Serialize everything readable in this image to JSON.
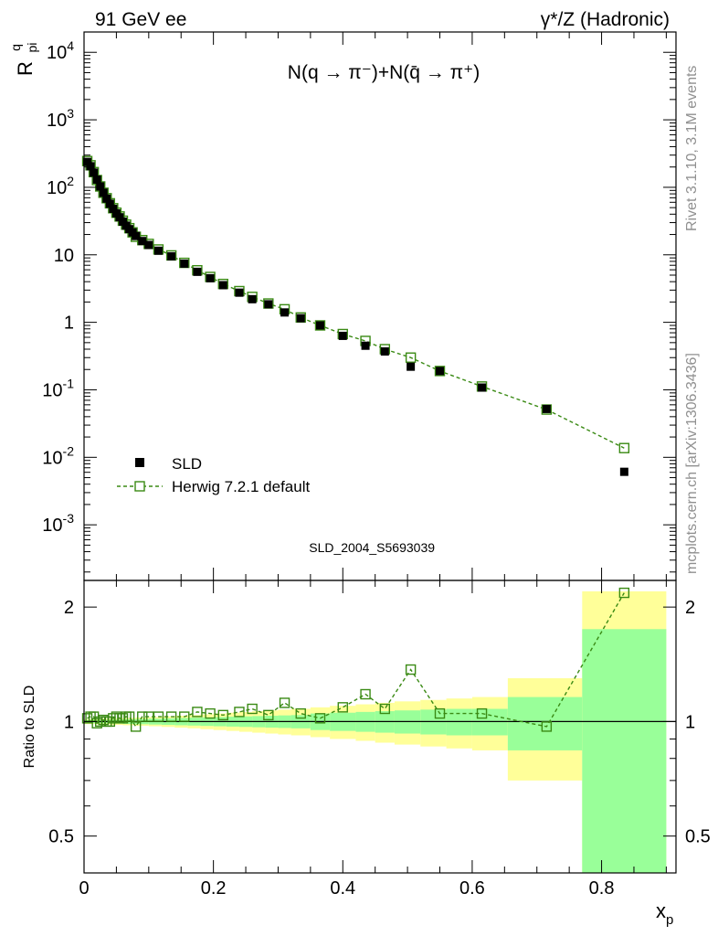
{
  "header": {
    "left": "91 GeV ee",
    "right": "γ*/Z (Hadronic)"
  },
  "side_labels": {
    "rivet": "Rivet 3.1.10,  3.1M events",
    "mcplots": "mcplots.cern.ch [arXiv:1306.3436]"
  },
  "chart_data": [
    {
      "type": "scatter",
      "panel": "main",
      "title": "N(q → π⁻)+N(q̄ → π⁺)",
      "ylabel": "R^q_pi",
      "yscale": "log",
      "ylim": [
        0.00015,
        20000
      ],
      "xlim": [
        0,
        0.915
      ],
      "y_tick_labels": [
        "10^4",
        "10^3",
        "10^2",
        "10",
        "1",
        "10^-1",
        "10^-2",
        "10^-3"
      ],
      "watermark": "SLD_2004_S5693039",
      "legend_position": "middle-left",
      "series": [
        {
          "name": "SLD",
          "marker": "filled-square",
          "color": "#000000",
          "x": [
            0.005,
            0.01,
            0.015,
            0.02,
            0.025,
            0.03,
            0.035,
            0.04,
            0.045,
            0.05,
            0.055,
            0.06,
            0.065,
            0.07,
            0.075,
            0.08,
            0.09,
            0.1,
            0.115,
            0.135,
            0.155,
            0.175,
            0.195,
            0.215,
            0.24,
            0.26,
            0.285,
            0.31,
            0.335,
            0.365,
            0.4,
            0.435,
            0.465,
            0.505,
            0.55,
            0.615,
            0.715,
            0.835
          ],
          "values": [
            238,
            205,
            165,
            130,
            103,
            83,
            68,
            57,
            48,
            41,
            36,
            31,
            27,
            24,
            21.5,
            19,
            16,
            14,
            11.5,
            9.5,
            7.4,
            5.6,
            4.5,
            3.55,
            2.75,
            2.2,
            1.85,
            1.4,
            1.15,
            0.9,
            0.63,
            0.45,
            0.37,
            0.22,
            0.19,
            0.108,
            0.052,
            0.0061
          ]
        },
        {
          "name": "Herwig 7.2.1 default",
          "marker": "open-square-dashed",
          "color": "#3a8a14",
          "x": [
            0.005,
            0.01,
            0.015,
            0.02,
            0.025,
            0.03,
            0.035,
            0.04,
            0.045,
            0.05,
            0.055,
            0.06,
            0.065,
            0.07,
            0.075,
            0.08,
            0.09,
            0.1,
            0.115,
            0.135,
            0.155,
            0.175,
            0.195,
            0.215,
            0.24,
            0.26,
            0.285,
            0.31,
            0.335,
            0.365,
            0.4,
            0.435,
            0.465,
            0.505,
            0.55,
            0.615,
            0.715,
            0.835
          ],
          "values": [
            245,
            212,
            168,
            128,
            103,
            83,
            69,
            58,
            49,
            42,
            37,
            32,
            28,
            24.8,
            21.5,
            18.5,
            16.5,
            14.5,
            12,
            9.8,
            7.6,
            5.9,
            4.7,
            3.7,
            2.9,
            2.38,
            1.9,
            1.56,
            1.18,
            0.9,
            0.67,
            0.53,
            0.4,
            0.3,
            0.19,
            0.112,
            0.051,
            0.0137
          ]
        }
      ]
    },
    {
      "type": "line",
      "panel": "ratio",
      "ylabel": "Ratio to SLD",
      "xlabel": "x_p",
      "yscale": "log",
      "ylim": [
        0.4,
        2.35
      ],
      "xlim": [
        0,
        0.915
      ],
      "y_tick_labels": [
        "2",
        "1",
        "0.5"
      ],
      "x_tick_labels": [
        "0",
        "0.2",
        "0.4",
        "0.6",
        "0.8"
      ],
      "x_ticks": [
        0,
        0.2,
        0.4,
        0.6,
        0.8
      ],
      "bands": {
        "edges": [
          0,
          0.02,
          0.04,
          0.06,
          0.08,
          0.1,
          0.12,
          0.14,
          0.16,
          0.18,
          0.2,
          0.22,
          0.24,
          0.26,
          0.28,
          0.3,
          0.32,
          0.35,
          0.38,
          0.42,
          0.45,
          0.48,
          0.52,
          0.56,
          0.6,
          0.655,
          0.77,
          0.9
        ],
        "green_half_width": [
          0.01,
          0.01,
          0.012,
          0.014,
          0.016,
          0.018,
          0.02,
          0.022,
          0.024,
          0.026,
          0.028,
          0.03,
          0.032,
          0.034,
          0.036,
          0.038,
          0.04,
          0.05,
          0.055,
          0.06,
          0.065,
          0.07,
          0.075,
          0.08,
          0.08,
          0.16,
          0.75
        ],
        "yellow_half_width": [
          0.015,
          0.018,
          0.02,
          0.022,
          0.025,
          0.028,
          0.032,
          0.036,
          0.04,
          0.045,
          0.05,
          0.055,
          0.06,
          0.065,
          0.07,
          0.075,
          0.08,
          0.09,
          0.1,
          0.11,
          0.12,
          0.13,
          0.14,
          0.15,
          0.16,
          0.3,
          1.2
        ]
      },
      "series": [
        {
          "name": "Herwig 7.2.1 default / SLD",
          "color": "#3a8a14",
          "x": [
            0.005,
            0.01,
            0.015,
            0.02,
            0.025,
            0.03,
            0.035,
            0.04,
            0.045,
            0.05,
            0.055,
            0.06,
            0.065,
            0.07,
            0.08,
            0.09,
            0.1,
            0.115,
            0.135,
            0.155,
            0.175,
            0.195,
            0.215,
            0.24,
            0.26,
            0.285,
            0.31,
            0.335,
            0.365,
            0.4,
            0.435,
            0.465,
            0.505,
            0.55,
            0.615,
            0.715,
            0.835
          ],
          "values": [
            1.02,
            1.03,
            1.03,
            0.99,
            1.0,
            1.01,
            1.0,
            1.0,
            1.02,
            1.03,
            1.02,
            1.02,
            1.03,
            1.03,
            0.97,
            1.03,
            1.03,
            1.03,
            1.03,
            1.03,
            1.06,
            1.05,
            1.04,
            1.06,
            1.08,
            1.04,
            1.12,
            1.05,
            1.02,
            1.09,
            1.18,
            1.08,
            1.37,
            1.05,
            1.05,
            0.97,
            2.18
          ]
        }
      ]
    }
  ]
}
